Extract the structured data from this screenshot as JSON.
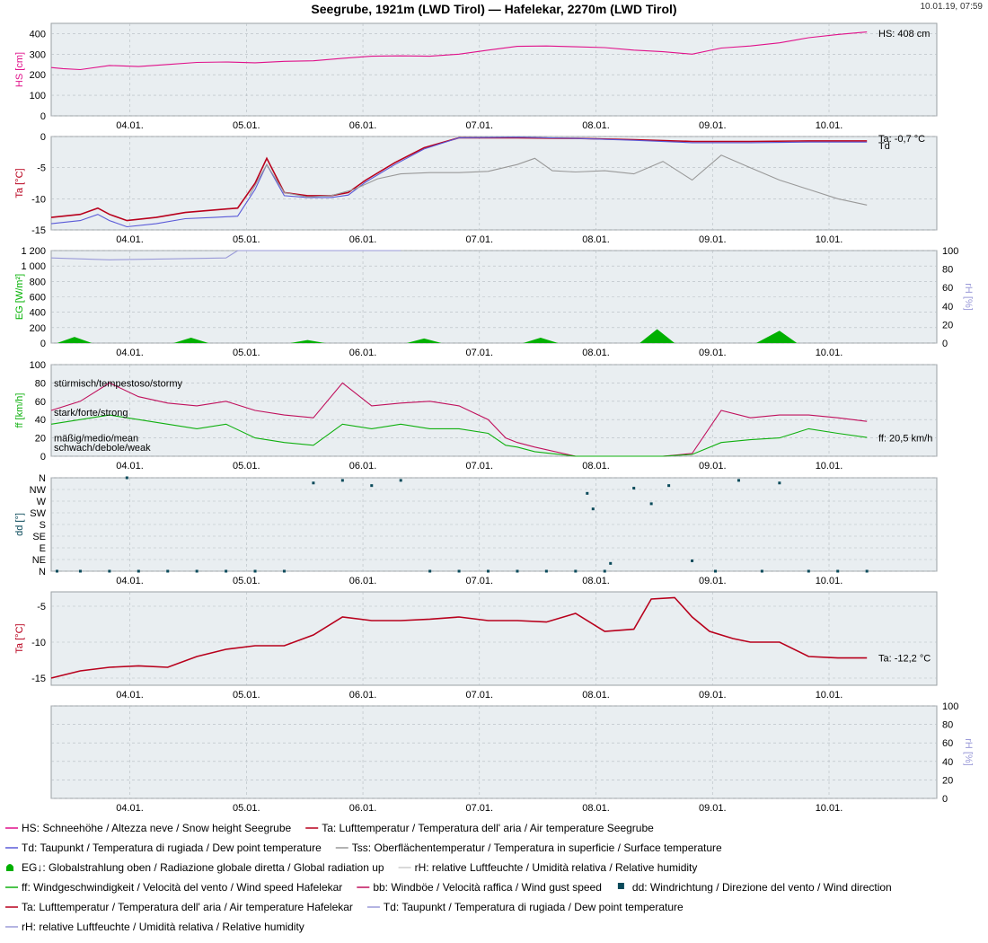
{
  "header": {
    "title": "Seegrube, 1921m (LWD Tirol) — Hafelekar, 2270m (LWD Tirol)",
    "timestamp": "10.01.19, 07:59"
  },
  "date_ticks": [
    "04.01.",
    "05.01.",
    "06.01.",
    "07.01.",
    "08.01.",
    "09.01.",
    "10.01."
  ],
  "colors": {
    "hs": "#e0118a",
    "ta": "#b8001c",
    "td": "#5a5ad8",
    "tss": "#999999",
    "eg": "#00b000",
    "rh": "#9a9ad8",
    "ff": "#10b010",
    "bb": "#c0105c",
    "dd": "#0a4a5a"
  },
  "panel_labels": {
    "hs": "HS [cm]",
    "ta1": "Ta [°C]",
    "eg": "EG [W/m²]",
    "rh": "rH [%]",
    "ff": "ff [km/h]",
    "dd": "dd [°]",
    "ta2": "Ta [°C]",
    "rh2": "rH [%]"
  },
  "annotations": {
    "hs_last": "HS: 408 cm",
    "ta_last": "Ta: -0,7 °C",
    "td_label": "Td",
    "ff_last": "ff: 20,5 km/h",
    "ta2_last": "Ta: -12,2 °C",
    "wind_stormy": "stürmisch/tempestoso/stormy",
    "wind_strong": "stark/forte/strong",
    "wind_medium": "mäßig/medio/mean",
    "wind_weak": "schwach/debole/weak"
  },
  "chart_data": [
    {
      "type": "line",
      "title": "",
      "ylabel": "HS [cm]",
      "ylim": [
        0,
        450
      ],
      "yticks": [
        0,
        100,
        200,
        300,
        400
      ],
      "series": [
        {
          "name": "HS",
          "x": [
            0,
            0.2,
            0.5,
            1,
            1.5,
            2,
            2.5,
            3,
            3.5,
            4,
            4.5,
            5,
            5.5,
            6,
            6.5,
            7,
            7.5,
            8,
            8.5,
            9,
            9.5,
            10,
            10.5,
            11,
            11.5,
            12,
            12.5,
            13,
            13.5,
            14
          ],
          "values": [
            235,
            230,
            225,
            245,
            240,
            250,
            260,
            262,
            258,
            265,
            268,
            280,
            290,
            292,
            290,
            300,
            320,
            338,
            340,
            336,
            332,
            320,
            312,
            300,
            330,
            340,
            355,
            380,
            396,
            408
          ]
        }
      ]
    },
    {
      "type": "line",
      "title": "",
      "ylabel": "Ta [°C]",
      "ylim": [
        -15,
        0
      ],
      "yticks": [
        -15,
        -10,
        -5,
        0
      ],
      "series": [
        {
          "name": "Ta",
          "x": [
            0,
            0.5,
            0.8,
            1,
            1.3,
            1.8,
            2.3,
            2.8,
            3.2,
            3.5,
            3.7,
            4.0,
            4.4,
            4.8,
            5.1,
            5.4,
            5.9,
            6.4,
            7,
            8,
            9,
            10,
            11,
            12,
            13,
            14
          ],
          "values": [
            -13,
            -12.5,
            -11.5,
            -12.5,
            -13.5,
            -13,
            -12.2,
            -11.8,
            -11.5,
            -7.5,
            -3.5,
            -9,
            -9.5,
            -9.5,
            -9,
            -7,
            -4.2,
            -1.8,
            -0.2,
            -0.2,
            -0.3,
            -0.5,
            -0.8,
            -0.8,
            -0.7,
            -0.7
          ]
        },
        {
          "name": "Td",
          "x": [
            0,
            0.5,
            0.8,
            1,
            1.3,
            1.8,
            2.3,
            2.8,
            3.2,
            3.5,
            3.7,
            4.0,
            4.4,
            4.8,
            5.1,
            5.4,
            5.9,
            6.4,
            7,
            8,
            9,
            10,
            11,
            12,
            13,
            14
          ],
          "values": [
            -14,
            -13.5,
            -12.5,
            -13.5,
            -14.5,
            -14,
            -13.2,
            -13,
            -12.8,
            -8.5,
            -4.5,
            -9.5,
            -9.8,
            -9.8,
            -9.4,
            -7.3,
            -4.5,
            -2,
            -0.2,
            -0.1,
            -0.3,
            -0.6,
            -1,
            -1,
            -0.9,
            -0.9
          ]
        },
        {
          "name": "Tss",
          "x": [
            3.4,
            3.7,
            4.0,
            4.4,
            4.8,
            5.2,
            5.6,
            6.0,
            6.5,
            7,
            7.5,
            8,
            8.3,
            8.6,
            9,
            9.5,
            10,
            10.5,
            11,
            11.5,
            12,
            12.5,
            13,
            13.5,
            14
          ],
          "values": [
            -9.5,
            -4.5,
            -9,
            -9.7,
            -9.5,
            -8.5,
            -6.8,
            -6,
            -5.8,
            -5.8,
            -5.6,
            -4.5,
            -3.5,
            -5.5,
            -5.7,
            -5.5,
            -6,
            -4,
            -7,
            -3,
            -5,
            -7,
            -8.5,
            -10,
            -11
          ]
        }
      ]
    },
    {
      "type": "area",
      "title": "",
      "ylabel": "EG [W/m²]",
      "ylim": [
        0,
        1200
      ],
      "yticks": [
        0,
        200,
        400,
        600,
        800,
        1000,
        1200
      ],
      "y2label": "rH [%]",
      "y2lim": [
        0,
        100
      ],
      "y2ticks": [
        0,
        20,
        40,
        60,
        80,
        100
      ],
      "series": [
        {
          "name": "EG",
          "x": [
            0.1,
            0.4,
            0.7,
            2.1,
            2.4,
            2.7,
            4.1,
            4.4,
            4.7,
            6.1,
            6.4,
            6.7,
            8.1,
            8.4,
            8.7,
            10.1,
            10.4,
            10.7,
            12.1,
            12.5,
            12.8,
            14
          ],
          "values": [
            0,
            80,
            0,
            0,
            70,
            0,
            0,
            40,
            0,
            0,
            60,
            0,
            0,
            70,
            0,
            0,
            180,
            0,
            0,
            160,
            0,
            0
          ]
        },
        {
          "name": "rH",
          "axis": "y2",
          "x": [
            0,
            1,
            2,
            3,
            3.2,
            4,
            5,
            6
          ],
          "values": [
            92,
            90,
            91,
            92,
            100,
            100,
            100,
            100
          ]
        }
      ]
    },
    {
      "type": "line",
      "title": "",
      "ylabel": "ff [km/h]",
      "ylim": [
        0,
        100
      ],
      "yticks": [
        0,
        20,
        40,
        60,
        80,
        100
      ],
      "series": [
        {
          "name": "bb",
          "x": [
            0,
            0.5,
            1,
            1.5,
            2,
            2.5,
            3,
            3.5,
            4,
            4.5,
            5,
            5.5,
            6,
            6.5,
            7,
            7.5,
            7.8,
            8,
            8.3,
            9,
            9.5,
            10,
            10.5,
            11,
            11.5,
            12,
            12.5,
            13,
            13.5,
            14
          ],
          "values": [
            50,
            60,
            80,
            65,
            58,
            55,
            60,
            50,
            45,
            42,
            80,
            55,
            58,
            60,
            55,
            40,
            20,
            15,
            10,
            0,
            0,
            0,
            0,
            3,
            50,
            42,
            45,
            45,
            42,
            38
          ]
        },
        {
          "name": "ff",
          "x": [
            0,
            0.5,
            1,
            1.5,
            2,
            2.5,
            3,
            3.5,
            4,
            4.5,
            5,
            5.5,
            6,
            6.5,
            7,
            7.5,
            7.8,
            8,
            8.3,
            9,
            9.5,
            10,
            10.5,
            11,
            11.5,
            12,
            12.5,
            13,
            13.5,
            14
          ],
          "values": [
            35,
            40,
            45,
            40,
            35,
            30,
            35,
            20,
            15,
            12,
            35,
            30,
            35,
            30,
            30,
            25,
            12,
            10,
            5,
            0,
            0,
            0,
            0,
            2,
            15,
            18,
            20,
            30,
            25,
            20.5
          ]
        }
      ]
    },
    {
      "type": "scatter",
      "title": "",
      "ylabel": "dd [°]",
      "ycategories": [
        "N",
        "NE",
        "E",
        "SE",
        "S",
        "SW",
        "W",
        "NW",
        "N"
      ],
      "series": [
        {
          "name": "dd",
          "x": [
            0.1,
            0.5,
            1,
            1.5,
            1.3,
            2,
            2.5,
            3,
            3.5,
            4,
            4.5,
            5,
            5.5,
            6,
            6.5,
            7,
            7.5,
            8,
            8.5,
            9,
            9.5,
            9.2,
            9.3,
            9.6,
            10,
            10.3,
            10.6,
            11,
            11.4,
            11.8,
            12.2,
            12.5,
            13,
            13.5,
            14
          ],
          "values": [
            0,
            0,
            0,
            0,
            360,
            0,
            0,
            0,
            0,
            0,
            340,
            350,
            330,
            350,
            0,
            0,
            0,
            0,
            0,
            0,
            0,
            300,
            240,
            30,
            320,
            260,
            330,
            40,
            0,
            350,
            0,
            340,
            0,
            0,
            0
          ]
        }
      ]
    },
    {
      "type": "line",
      "title": "",
      "ylabel": "Ta [°C]",
      "ylim": [
        -16,
        -3
      ],
      "yticks": [
        -15,
        -10,
        -5
      ],
      "series": [
        {
          "name": "Ta",
          "x": [
            0,
            0.5,
            1,
            1.5,
            2,
            2.5,
            3,
            3.5,
            4,
            4.5,
            5,
            5.5,
            6,
            6.5,
            7,
            7.5,
            8,
            8.5,
            9,
            9.5,
            10,
            10.3,
            10.7,
            11,
            11.3,
            11.7,
            12,
            12.5,
            13,
            13.5,
            14
          ],
          "values": [
            -15,
            -14,
            -13.5,
            -13.3,
            -13.5,
            -12,
            -11,
            -10.5,
            -10.5,
            -9,
            -6.5,
            -7,
            -7,
            -6.8,
            -6.5,
            -7,
            -7,
            -7.2,
            -6,
            -8.5,
            -8.2,
            -4,
            -3.8,
            -6.5,
            -8.5,
            -9.5,
            -10,
            -10,
            -12,
            -12.2,
            -12.2
          ]
        }
      ]
    },
    {
      "type": "line",
      "title": "",
      "ylabel": "",
      "ylim": [
        0,
        100
      ],
      "y2label": "rH [%]",
      "y2lim": [
        0,
        100
      ],
      "y2ticks": [
        0,
        20,
        40,
        60,
        80,
        100
      ],
      "series": []
    }
  ],
  "legend": {
    "rows": [
      [
        {
          "sym": "line",
          "color": "#e0118a",
          "text": "HS: Schneehöhe / Altezza neve / Snow height  Seegrube"
        },
        {
          "sym": "line",
          "color": "#b8001c",
          "text": "Ta: Lufttemperatur / Temperatura dell' aria / Air temperature  Seegrube"
        }
      ],
      [
        {
          "sym": "line",
          "color": "#5a5ad8",
          "text": "Td: Taupunkt / Temperatura di rugiada / Dew point temperature"
        },
        {
          "sym": "line",
          "color": "#999999",
          "text": "Tss: Oberflächentemperatur / Temperatura in superficie / Surface temperature"
        }
      ],
      [
        {
          "sym": "area",
          "color": "#00b000",
          "text": "EG↓: Globalstrahlung oben / Radiazione globale diretta / Global radiation up"
        },
        {
          "sym": "line",
          "color": "#cccccc",
          "text": "rH: relative Luftfeuchte / Umidità relativa / Relative humidity"
        }
      ],
      [
        {
          "sym": "line",
          "color": "#10b010",
          "text": "ff: Windgeschwindigkeit / Velocità del vento / Wind speed  Hafelekar"
        },
        {
          "sym": "line",
          "color": "#c0105c",
          "text": "bb: Windböe / Velocità raffica / Wind gust speed"
        },
        {
          "sym": "square",
          "color": "#0a4a5a",
          "text": "dd: Windrichtung / Direzione del vento / Wind direction"
        }
      ],
      [
        {
          "sym": "line",
          "color": "#b8001c",
          "text": "Ta: Lufttemperatur / Temperatura dell' aria / Air temperature  Hafelekar"
        },
        {
          "sym": "line",
          "color": "#9a9ad8",
          "text": "Td: Taupunkt / Temperatura di rugiada / Dew point temperature"
        }
      ],
      [
        {
          "sym": "line",
          "color": "#9a9ad8",
          "text": "rH: relative Luftfeuchte / Umidità relativa / Relative humidity"
        }
      ]
    ]
  }
}
